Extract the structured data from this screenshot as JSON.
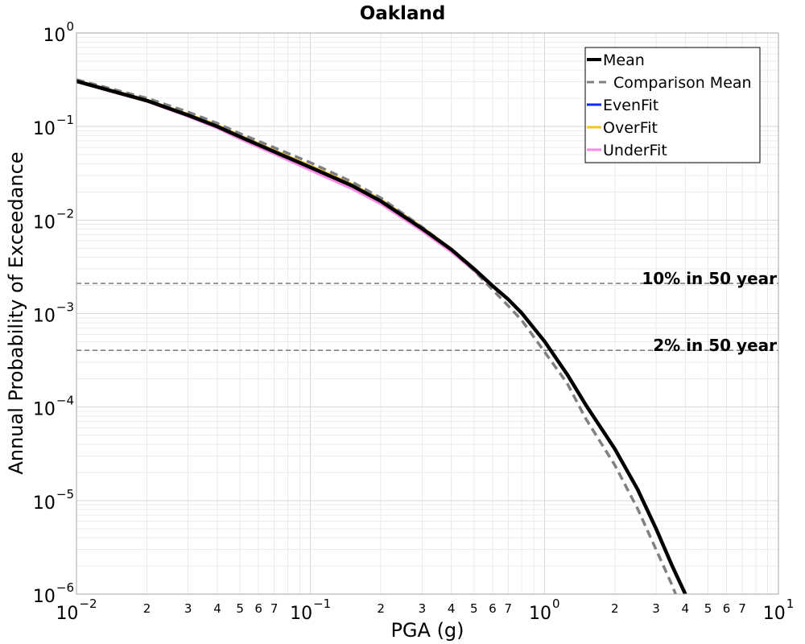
{
  "chart_data": {
    "type": "line",
    "title": "Oakland",
    "xlabel": "PGA (g)",
    "ylabel": "Annual Probability of Exceedance",
    "x_scale": "log",
    "y_scale": "log",
    "xlim": [
      0.01,
      10
    ],
    "ylim": [
      1e-06,
      1
    ],
    "grid": true,
    "legend_position": "top-right",
    "x_ticks": {
      "major": [
        {
          "value": 0.01,
          "base": "10",
          "exp": "−2"
        },
        {
          "value": 0.1,
          "base": "10",
          "exp": "−1"
        },
        {
          "value": 1,
          "base": "10",
          "exp": "0"
        },
        {
          "value": 10,
          "base": "10",
          "exp": "1"
        }
      ],
      "minor": [
        {
          "value": 0.02,
          "label": "2"
        },
        {
          "value": 0.03,
          "label": "3"
        },
        {
          "value": 0.04,
          "label": "4"
        },
        {
          "value": 0.05,
          "label": "5"
        },
        {
          "value": 0.06,
          "label": "6"
        },
        {
          "value": 0.07,
          "label": "7"
        },
        {
          "value": 0.2,
          "label": "2"
        },
        {
          "value": 0.3,
          "label": "3"
        },
        {
          "value": 0.4,
          "label": "4"
        },
        {
          "value": 0.5,
          "label": "5"
        },
        {
          "value": 0.6,
          "label": "6"
        },
        {
          "value": 0.7,
          "label": "7"
        },
        {
          "value": 2,
          "label": "2"
        },
        {
          "value": 3,
          "label": "3"
        },
        {
          "value": 4,
          "label": "4"
        },
        {
          "value": 5,
          "label": "5"
        },
        {
          "value": 6,
          "label": "6"
        },
        {
          "value": 7,
          "label": "7"
        }
      ]
    },
    "y_ticks": {
      "major": [
        {
          "value": 1,
          "base": "10",
          "exp": "0"
        },
        {
          "value": 0.1,
          "base": "10",
          "exp": "−1"
        },
        {
          "value": 0.01,
          "base": "10",
          "exp": "−2"
        },
        {
          "value": 0.001,
          "base": "10",
          "exp": "−3"
        },
        {
          "value": 0.0001,
          "base": "10",
          "exp": "−4"
        },
        {
          "value": 1e-05,
          "base": "10",
          "exp": "−5"
        },
        {
          "value": 1e-06,
          "base": "10",
          "exp": "−6"
        }
      ]
    },
    "x": [
      0.01,
      0.02,
      0.03,
      0.04,
      0.05,
      0.07,
      0.1,
      0.15,
      0.2,
      0.3,
      0.4,
      0.5,
      0.6,
      0.7,
      0.8,
      1.0,
      1.25,
      1.5,
      2.0,
      2.5,
      3.0,
      3.5,
      4.0
    ],
    "series": [
      {
        "name": "Mean",
        "color": "#000000",
        "style": "solid",
        "values": [
          0.305,
          0.189,
          0.132,
          0.1,
          0.0776,
          0.0538,
          0.0366,
          0.0234,
          0.0159,
          0.0081,
          0.00484,
          0.00301,
          0.00198,
          0.00142,
          0.00101,
          0.000506,
          0.000224,
          0.000106,
          3.56e-05,
          1.32e-05,
          5e-06,
          2.05e-06,
          1e-06
        ]
      },
      {
        "name": "Comparison Mean",
        "color": "#808080",
        "style": "dashed",
        "values": [
          0.317,
          0.201,
          0.143,
          0.108,
          0.084,
          0.0595,
          0.0411,
          0.0257,
          0.0172,
          0.00843,
          0.00484,
          0.00289,
          0.0018,
          0.00121,
          0.000847,
          0.000391,
          0.00018,
          7.55e-05,
          2.39e-05,
          8.2e-06,
          2.99e-06,
          1.27e-06,
          5.5e-07
        ]
      },
      {
        "name": "EvenFit",
        "color": "#0a2bff",
        "style": "solid",
        "values": [
          0.306,
          0.19,
          0.133,
          0.101,
          0.0778,
          0.054,
          0.0368,
          0.0235,
          0.016,
          0.0081,
          0.00484,
          0.003,
          0.00198,
          0.00142,
          0.00101,
          0.000505,
          0.000224,
          0.000106,
          3.55e-05,
          1.32e-05,
          5e-06,
          2.05e-06,
          1e-06
        ]
      },
      {
        "name": "OverFit",
        "color": "#f2c81e",
        "style": "solid",
        "values": [
          0.31,
          0.193,
          0.136,
          0.104,
          0.0805,
          0.0557,
          0.0381,
          0.0243,
          0.0166,
          0.0084,
          0.00492,
          0.00303,
          0.00199,
          0.00142,
          0.00101,
          0.000506,
          0.000224,
          0.000106,
          3.56e-05,
          1.32e-05,
          5e-06,
          2.05e-06,
          1e-06
        ]
      },
      {
        "name": "UnderFit",
        "color": "#ff8ae6",
        "style": "solid",
        "values": [
          0.3,
          0.185,
          0.128,
          0.096,
          0.0735,
          0.0508,
          0.034,
          0.0216,
          0.0148,
          0.0076,
          0.00455,
          0.00287,
          0.00192,
          0.0014,
          0.001,
          0.000504,
          0.000224,
          0.000106,
          3.56e-05,
          1.32e-05,
          5e-06,
          2.05e-06,
          1e-06
        ]
      }
    ],
    "reference_lines": [
      {
        "label": "10% in 50 year",
        "y": 0.0021,
        "color": "#808080",
        "style": "dashed"
      },
      {
        "label": "2% in 50 year",
        "y": 0.000404,
        "color": "#808080",
        "style": "dashed"
      }
    ]
  }
}
